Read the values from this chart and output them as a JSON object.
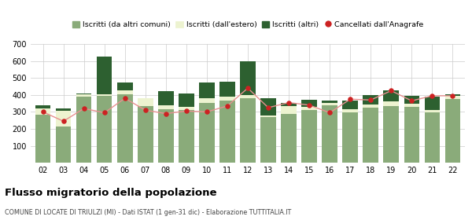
{
  "years": [
    "02",
    "03",
    "04",
    "05",
    "06",
    "07",
    "08",
    "09",
    "10",
    "11",
    "12",
    "13",
    "14",
    "15",
    "16",
    "17",
    "18",
    "19",
    "20",
    "21",
    "22"
  ],
  "iscritti_altri_comuni": [
    285,
    215,
    390,
    395,
    405,
    335,
    315,
    310,
    355,
    365,
    380,
    270,
    290,
    310,
    340,
    295,
    325,
    335,
    330,
    295,
    375
  ],
  "iscritti_estero": [
    35,
    90,
    15,
    10,
    20,
    45,
    25,
    20,
    25,
    25,
    20,
    10,
    45,
    20,
    15,
    20,
    20,
    25,
    20,
    15,
    20
  ],
  "iscritti_altri": [
    20,
    15,
    5,
    220,
    50,
    0,
    80,
    80,
    95,
    90,
    200,
    100,
    20,
    40,
    10,
    50,
    55,
    65,
    45,
    80,
    10
  ],
  "cancellati": [
    300,
    245,
    320,
    295,
    380,
    310,
    290,
    305,
    300,
    335,
    440,
    325,
    355,
    340,
    295,
    375,
    370,
    425,
    365,
    395,
    395
  ],
  "color_altri_comuni": "#8aab7a",
  "color_estero": "#edf3d0",
  "color_altri": "#2d6030",
  "color_cancellati": "#cc2222",
  "color_cancellati_line": "#e89090",
  "ylim": [
    0,
    700
  ],
  "yticks": [
    0,
    100,
    200,
    300,
    400,
    500,
    600,
    700
  ],
  "title": "Flusso migratorio della popolazione",
  "subtitle": "COMUNE DI LOCATE DI TRIULZI (MI) - Dati ISTAT (1 gen-31 dic) - Elaborazione TUTTITALIA.IT",
  "legend_labels": [
    "Iscritti (da altri comuni)",
    "Iscritti (dall'estero)",
    "Iscritti (altri)",
    "Cancellati dall'Anagrafe"
  ],
  "bg_color": "#ffffff",
  "grid_color": "#cccccc"
}
